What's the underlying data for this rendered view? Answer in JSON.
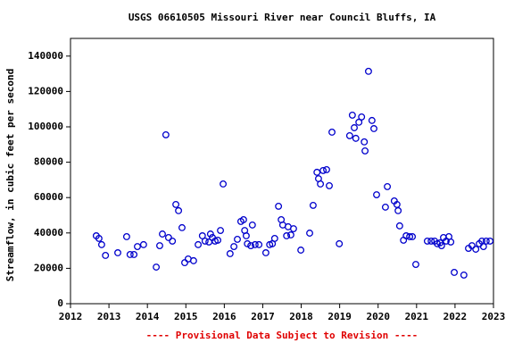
{
  "chart_data": {
    "type": "scatter",
    "title": "USGS 06610505 Missouri River near Council Bluffs, IA",
    "y_label": "Streamflow, in cubic feet per second",
    "footnote": "---- Provisional Data Subject to Revision ----",
    "xlim": [
      2012,
      2023
    ],
    "ylim": [
      0,
      150000
    ],
    "xticks": [
      2012,
      2013,
      2014,
      2015,
      2016,
      2017,
      2018,
      2019,
      2020,
      2021,
      2022,
      2023
    ],
    "yticks": [
      0,
      20000,
      40000,
      60000,
      80000,
      100000,
      120000,
      140000
    ],
    "color": "#0000cc",
    "x": [
      2012.67,
      2012.74,
      2012.81,
      2012.91,
      2013.23,
      2013.46,
      2013.55,
      2013.65,
      2013.74,
      2013.9,
      2014.23,
      2014.32,
      2014.39,
      2014.48,
      2014.55,
      2014.65,
      2014.74,
      2014.81,
      2014.9,
      2014.97,
      2015.06,
      2015.2,
      2015.32,
      2015.43,
      2015.5,
      2015.6,
      2015.64,
      2015.69,
      2015.76,
      2015.83,
      2015.9,
      2015.97,
      2016.15,
      2016.25,
      2016.34,
      2016.43,
      2016.5,
      2016.53,
      2016.57,
      2016.6,
      2016.69,
      2016.73,
      2016.8,
      2016.9,
      2017.08,
      2017.18,
      2017.25,
      2017.31,
      2017.41,
      2017.48,
      2017.52,
      2017.62,
      2017.66,
      2017.73,
      2017.8,
      2017.99,
      2018.22,
      2018.31,
      2018.41,
      2018.45,
      2018.5,
      2018.57,
      2018.66,
      2018.73,
      2018.8,
      2018.99,
      2019.26,
      2019.33,
      2019.38,
      2019.42,
      2019.5,
      2019.57,
      2019.64,
      2019.66,
      2019.75,
      2019.84,
      2019.89,
      2019.96,
      2020.19,
      2020.24,
      2020.42,
      2020.49,
      2020.52,
      2020.56,
      2020.66,
      2020.73,
      2020.82,
      2020.89,
      2020.98,
      2021.28,
      2021.38,
      2021.47,
      2021.54,
      2021.61,
      2021.65,
      2021.7,
      2021.77,
      2021.84,
      2021.89,
      2021.98,
      2022.23,
      2022.35,
      2022.44,
      2022.54,
      2022.63,
      2022.7,
      2022.74,
      2022.81,
      2022.91
    ],
    "values": [
      38400,
      36900,
      33400,
      27300,
      28800,
      37900,
      27800,
      27800,
      32300,
      33400,
      20700,
      32800,
      39400,
      95500,
      37400,
      35400,
      56100,
      52600,
      43000,
      23200,
      25300,
      24300,
      33400,
      38400,
      35400,
      34900,
      39400,
      37400,
      35400,
      35900,
      41400,
      67700,
      28300,
      32300,
      36400,
      46500,
      47500,
      41400,
      38400,
      33900,
      32800,
      44500,
      33400,
      33400,
      28800,
      33400,
      33900,
      36900,
      55100,
      47500,
      44500,
      38400,
      43500,
      38900,
      42400,
      30300,
      39900,
      55600,
      74300,
      70700,
      67700,
      75300,
      75800,
      66700,
      97000,
      33900,
      95000,
      106600,
      99500,
      93500,
      102600,
      105600,
      91500,
      86400,
      131400,
      103600,
      99000,
      61600,
      54600,
      66200,
      58100,
      56100,
      52600,
      44000,
      35900,
      38400,
      37900,
      37900,
      22200,
      35400,
      35400,
      35400,
      33900,
      34400,
      32800,
      37400,
      35400,
      37900,
      34900,
      17700,
      16200,
      31300,
      32800,
      30800,
      33900,
      35400,
      32300,
      35400,
      35400
    ]
  }
}
